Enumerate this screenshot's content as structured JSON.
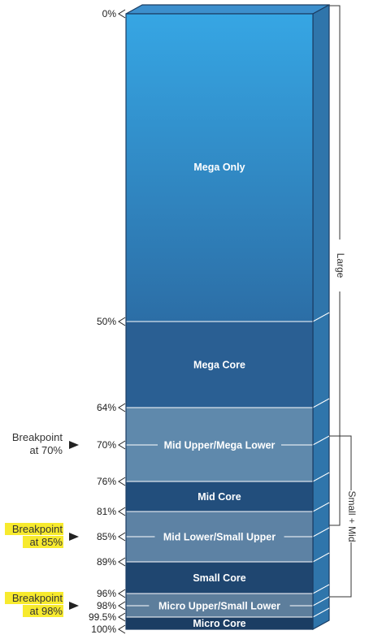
{
  "colors": {
    "mega_only_top": "#36a6e4",
    "mega_only_bottom": "#2c6ea6",
    "mega_core": "#2a5f93",
    "mid_upper_mega_lower": "#5f89ac",
    "mid_core": "#224e7c",
    "mid_lower_small_upper": "#5d82a4",
    "small_core": "#1f4670",
    "micro_upper_small_lower": "#5d7e9c",
    "micro_core": "#1b3d63",
    "side": "#2f75ab",
    "top": "#3c8fcd",
    "highlight": "#f7ea2e"
  },
  "chart_data": {
    "type": "stacked-column",
    "unit": "%",
    "segments": [
      {
        "label": "Mega Only",
        "start": 0,
        "end": 50
      },
      {
        "label": "Mega Core",
        "start": 50,
        "end": 64
      },
      {
        "label": "Mid Upper/Mega Lower",
        "start": 64,
        "end": 76
      },
      {
        "label": "Mid Core",
        "start": 76,
        "end": 81
      },
      {
        "label": "Mid Lower/Small Upper",
        "start": 81,
        "end": 89
      },
      {
        "label": "Small Core",
        "start": 89,
        "end": 96
      },
      {
        "label": "Micro Upper/Small Lower",
        "start": 96,
        "end": 99.5
      },
      {
        "label": "Micro Core",
        "start": 99.5,
        "end": 100
      }
    ],
    "ticks": [
      "0%",
      "50%",
      "64%",
      "70%",
      "76%",
      "81%",
      "85%",
      "89%",
      "96%",
      "98%",
      "99.5%",
      "100%"
    ],
    "breakpoints": [
      {
        "line1": "Breakpoint",
        "line2": "at 70%",
        "value": 70,
        "highlighted": false
      },
      {
        "line1": "Breakpoint",
        "line2": "at 85%",
        "value": 85,
        "highlighted": true
      },
      {
        "line1": "Breakpoint",
        "line2": "at 98%",
        "value": 98,
        "highlighted": true
      }
    ],
    "brackets": [
      {
        "label": "Large",
        "from": 0,
        "to": 85
      },
      {
        "label": "Small + Mid",
        "from": 70,
        "to": 98
      }
    ]
  }
}
